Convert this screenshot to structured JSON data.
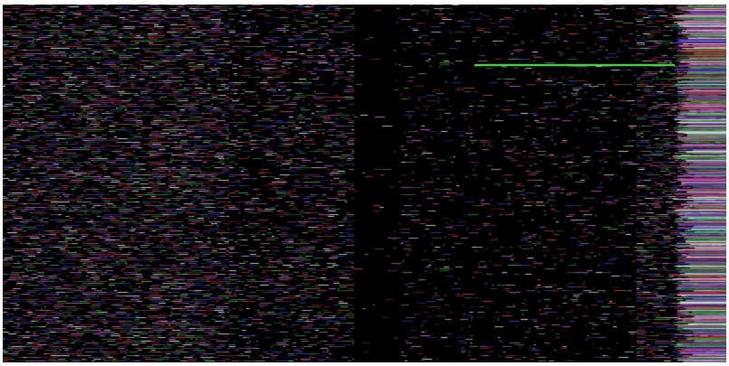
{
  "image": {
    "description_type": "corrupted-video-frame",
    "dominant_colors": {
      "background": "#000000",
      "border": "#ffffff",
      "streak": "#3fd13a",
      "noise_red": "#b8383c",
      "noise_green": "#3aa84a",
      "noise_blue": "#3b3fb0",
      "noise_white": "#d8d8e0",
      "noise_magenta": "#c060c8"
    },
    "regions": [
      {
        "name": "left-noise-band",
        "density": 0.55
      },
      {
        "name": "mid-left-noise-band",
        "density": 0.35
      },
      {
        "name": "center-dark-band",
        "density": 0.02
      },
      {
        "name": "mid-right-sparse-band",
        "density": 0.12
      },
      {
        "name": "right-dense-band",
        "density": 0.45
      },
      {
        "name": "right-edge-bright-band",
        "density": 0.9
      }
    ]
  }
}
